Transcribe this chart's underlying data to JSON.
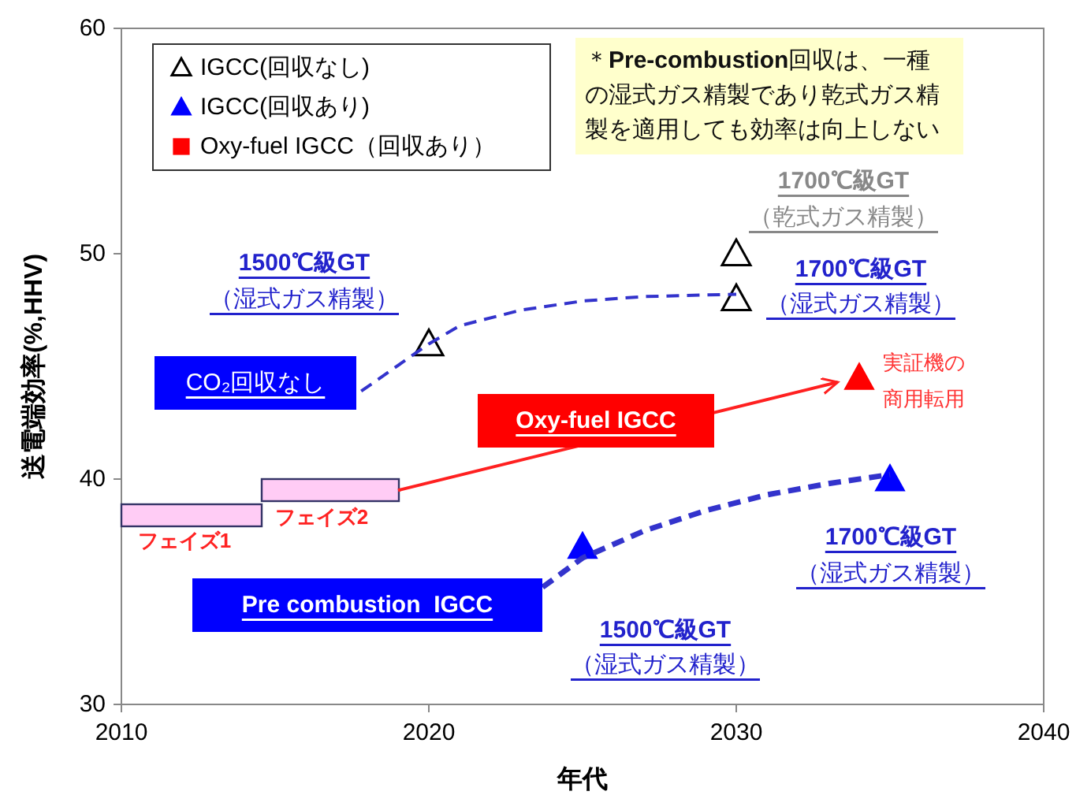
{
  "chart_data": {
    "type": "scatter",
    "xlabel": "年代",
    "ylabel": "送電端効率(%,HHV)",
    "xlim": [
      2010,
      2040
    ],
    "xticks": [
      2010,
      2020,
      2030,
      2040
    ],
    "ylim": [
      30,
      60
    ],
    "yticks": [
      30,
      40,
      50,
      60
    ],
    "legend": "top left",
    "series": [
      {
        "name": "IGCC(回収なし)",
        "color": "#000000",
        "marker": "triangle",
        "x": [
          2020,
          2030,
          2030
        ],
        "values": [
          46,
          50,
          48
        ]
      },
      {
        "name": "IGCC(回収あり)",
        "color": "#0000ff",
        "marker": "triangle",
        "x": [
          2025,
          2035
        ],
        "values": [
          37,
          40
        ]
      },
      {
        "name": "Oxy-fuel IGCC（回収あり）",
        "color": "#ff0000",
        "marker": "triangle",
        "x": [
          2034
        ],
        "values": [
          44.5
        ]
      },
      {
        "type": "line",
        "color": "#3333cc",
        "line_style": "dashed",
        "x": [
          2017.8,
          2020,
          2021,
          2023,
          2025,
          2027,
          2030
        ],
        "values": [
          43.9,
          46,
          46.8,
          47.5,
          47.9,
          48.1,
          48.2
        ]
      },
      {
        "type": "line",
        "color": "#3333cc",
        "line_style": "dashed",
        "x": [
          2023.7,
          2025,
          2027,
          2029,
          2031,
          2033,
          2035
        ],
        "values": [
          35.2,
          36.5,
          37.7,
          38.6,
          39.3,
          39.8,
          40.2
        ]
      },
      {
        "type": "line",
        "color": "#ff2020",
        "line_style": "solid",
        "x": [
          2019,
          2033.3
        ],
        "values": [
          39.5,
          44.3
        ]
      }
    ],
    "annotations": [
      "＊**Pre-combustion**回収は、一種の湿式ガス精製であり乾式ガス精製を適用しても効率は向上しない",
      "1700℃級GT",
      "（乾式ガス精製）",
      "1700℃級GT",
      "（湿式ガス精製）",
      "1500℃級GT",
      "（湿式ガス精製）",
      "CO₂回収なし",
      "Oxy-fuel IGCC",
      "実証機の",
      "商用転用",
      "フェイズ1",
      "フェイズ2",
      "Pre combustion  IGCC",
      "1700℃級GT",
      "（湿式ガス精製）",
      "1500℃級GT",
      "（湿式ガス精製）"
    ]
  }
}
